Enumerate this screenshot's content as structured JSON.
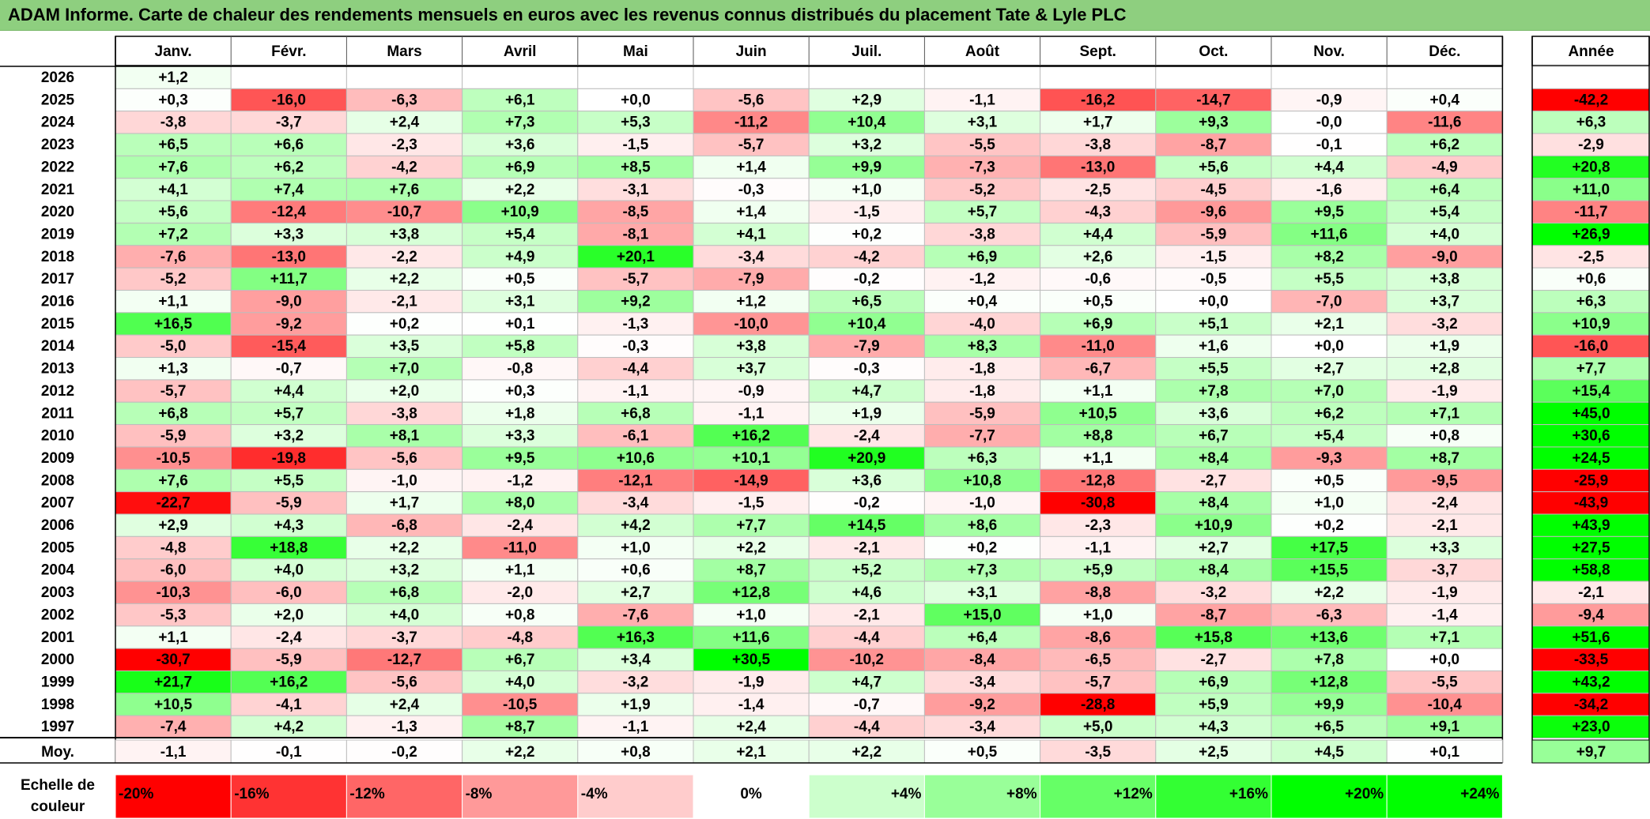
{
  "title": "ADAM Informe. Carte de chaleur des rendements mensuels en euros avec les revenus connus distribués du placement Tate & Lyle PLC",
  "chart_data": {
    "type": "heatmap",
    "months": [
      "Janv.",
      "Févr.",
      "Mars",
      "Avril",
      "Mai",
      "Juin",
      "Juil.",
      "Août",
      "Sept.",
      "Oct.",
      "Nov.",
      "Déc."
    ],
    "year_header": "Année",
    "years": [
      "2026",
      "2025",
      "2024",
      "2023",
      "2022",
      "2021",
      "2020",
      "2019",
      "2018",
      "2017",
      "2016",
      "2015",
      "2014",
      "2013",
      "2012",
      "2011",
      "2010",
      "2009",
      "2008",
      "2007",
      "2006",
      "2005",
      "2004",
      "2003",
      "2002",
      "2001",
      "2000",
      "1999",
      "1998",
      "1997"
    ],
    "values": [
      [
        "+1,2",
        "",
        "",
        "",
        "",
        "",
        "",
        "",
        "",
        "",
        "",
        ""
      ],
      [
        "+0,3",
        "-16,0",
        "-6,3",
        "+6,1",
        "+0,0",
        "-5,6",
        "+2,9",
        "-1,1",
        "-16,2",
        "-14,7",
        "-0,9",
        "+0,4"
      ],
      [
        "-3,8",
        "-3,7",
        "+2,4",
        "+7,3",
        "+5,3",
        "-11,2",
        "+10,4",
        "+3,1",
        "+1,7",
        "+9,3",
        "-0,0",
        "-11,6"
      ],
      [
        "+6,5",
        "+6,6",
        "-2,3",
        "+3,6",
        "-1,5",
        "-5,7",
        "+3,2",
        "-5,5",
        "-3,8",
        "-8,7",
        "-0,1",
        "+6,2"
      ],
      [
        "+7,6",
        "+6,2",
        "-4,2",
        "+6,9",
        "+8,5",
        "+1,4",
        "+9,9",
        "-7,3",
        "-13,0",
        "+5,6",
        "+4,4",
        "-4,9"
      ],
      [
        "+4,1",
        "+7,4",
        "+7,6",
        "+2,2",
        "-3,1",
        "-0,3",
        "+1,0",
        "-5,2",
        "-2,5",
        "-4,5",
        "-1,6",
        "+6,4"
      ],
      [
        "+5,6",
        "-12,4",
        "-10,7",
        "+10,9",
        "-8,5",
        "+1,4",
        "-1,5",
        "+5,7",
        "-4,3",
        "-9,6",
        "+9,5",
        "+5,4"
      ],
      [
        "+7,2",
        "+3,3",
        "+3,8",
        "+5,4",
        "-8,1",
        "+4,1",
        "+0,2",
        "-3,8",
        "+4,4",
        "-5,9",
        "+11,6",
        "+4,0"
      ],
      [
        "-7,6",
        "-13,0",
        "-2,2",
        "+4,9",
        "+20,1",
        "-3,4",
        "-4,2",
        "+6,9",
        "+2,6",
        "-1,5",
        "+8,2",
        "-9,0"
      ],
      [
        "-5,2",
        "+11,7",
        "+2,2",
        "+0,5",
        "-5,7",
        "-7,9",
        "-0,2",
        "-1,2",
        "-0,6",
        "-0,5",
        "+5,5",
        "+3,8"
      ],
      [
        "+1,1",
        "-9,0",
        "-2,1",
        "+3,1",
        "+9,2",
        "+1,2",
        "+6,5",
        "+0,4",
        "+0,5",
        "+0,0",
        "-7,0",
        "+3,7"
      ],
      [
        "+16,5",
        "-9,2",
        "+0,2",
        "+0,1",
        "-1,3",
        "-10,0",
        "+10,4",
        "-4,0",
        "+6,9",
        "+5,1",
        "+2,1",
        "-3,2"
      ],
      [
        "-5,0",
        "-15,4",
        "+3,5",
        "+5,8",
        "-0,3",
        "+3,8",
        "-7,9",
        "+8,3",
        "-11,0",
        "+1,6",
        "+0,0",
        "+1,9"
      ],
      [
        "+1,3",
        "-0,7",
        "+7,0",
        "-0,8",
        "-4,4",
        "+3,7",
        "-0,3",
        "-1,8",
        "-6,7",
        "+5,5",
        "+2,7",
        "+2,8"
      ],
      [
        "-5,7",
        "+4,4",
        "+2,0",
        "+0,3",
        "-1,1",
        "-0,9",
        "+4,7",
        "-1,8",
        "+1,1",
        "+7,8",
        "+7,0",
        "-1,9"
      ],
      [
        "+6,8",
        "+5,7",
        "-3,8",
        "+1,8",
        "+6,8",
        "-1,1",
        "+1,9",
        "-5,9",
        "+10,5",
        "+3,6",
        "+6,2",
        "+7,1"
      ],
      [
        "-5,9",
        "+3,2",
        "+8,1",
        "+3,3",
        "-6,1",
        "+16,2",
        "-2,4",
        "-7,7",
        "+8,8",
        "+6,7",
        "+5,4",
        "+0,8"
      ],
      [
        "-10,5",
        "-19,8",
        "-5,6",
        "+9,5",
        "+10,6",
        "+10,1",
        "+20,9",
        "+6,3",
        "+1,1",
        "+8,4",
        "-9,3",
        "+8,7"
      ],
      [
        "+7,6",
        "+5,5",
        "-1,0",
        "-1,2",
        "-12,1",
        "-14,9",
        "+3,6",
        "+10,8",
        "-12,8",
        "-2,7",
        "+0,5",
        "-9,5"
      ],
      [
        "-22,7",
        "-5,9",
        "+1,7",
        "+8,0",
        "-3,4",
        "-1,5",
        "-0,2",
        "-1,0",
        "-30,8",
        "+8,4",
        "+1,0",
        "-2,4"
      ],
      [
        "+2,9",
        "+4,3",
        "-6,8",
        "-2,4",
        "+4,2",
        "+7,7",
        "+14,5",
        "+8,6",
        "-2,3",
        "+10,9",
        "+0,2",
        "-2,1"
      ],
      [
        "-4,8",
        "+18,8",
        "+2,2",
        "-11,0",
        "+1,0",
        "+2,2",
        "-2,1",
        "+0,2",
        "-1,1",
        "+2,7",
        "+17,5",
        "+3,3"
      ],
      [
        "-6,0",
        "+4,0",
        "+3,2",
        "+1,1",
        "+0,6",
        "+8,7",
        "+5,2",
        "+7,3",
        "+5,9",
        "+8,4",
        "+15,5",
        "-3,7"
      ],
      [
        "-10,3",
        "-6,0",
        "+6,8",
        "-2,0",
        "+2,7",
        "+12,8",
        "+4,6",
        "+3,1",
        "-8,8",
        "-3,2",
        "+2,2",
        "-1,9"
      ],
      [
        "-5,3",
        "+2,0",
        "+4,0",
        "+0,8",
        "-7,6",
        "+1,0",
        "-2,1",
        "+15,0",
        "+1,0",
        "-8,7",
        "-6,3",
        "-1,4"
      ],
      [
        "+1,1",
        "-2,4",
        "-3,7",
        "-4,8",
        "+16,3",
        "+11,6",
        "-4,4",
        "+6,4",
        "-8,6",
        "+15,8",
        "+13,6",
        "+7,1"
      ],
      [
        "-30,7",
        "-5,9",
        "-12,7",
        "+6,7",
        "+3,4",
        "+30,5",
        "-10,2",
        "-8,4",
        "-6,5",
        "-2,7",
        "+7,8",
        "+0,0"
      ],
      [
        "+21,7",
        "+16,2",
        "-5,6",
        "+4,0",
        "-3,2",
        "-1,9",
        "+4,7",
        "-3,4",
        "-5,7",
        "+6,9",
        "+12,8",
        "-5,5"
      ],
      [
        "+10,5",
        "-4,1",
        "+2,4",
        "-10,5",
        "+1,9",
        "-1,4",
        "-0,7",
        "-9,2",
        "-28,8",
        "+5,9",
        "+9,9",
        "-10,4"
      ],
      [
        "-7,4",
        "+4,2",
        "-1,3",
        "+8,7",
        "-1,1",
        "+2,4",
        "-4,4",
        "-3,4",
        "+5,0",
        "+4,3",
        "+6,5",
        "+9,1"
      ]
    ],
    "annual": [
      "",
      "-42,2",
      "+6,3",
      "-2,9",
      "+20,8",
      "+11,0",
      "-11,7",
      "+26,9",
      "-2,5",
      "+0,6",
      "+6,3",
      "+10,9",
      "-16,0",
      "+7,7",
      "+15,4",
      "+45,0",
      "+30,6",
      "+24,5",
      "-25,9",
      "-43,9",
      "+43,9",
      "+27,5",
      "+58,8",
      "-2,1",
      "-9,4",
      "+51,6",
      "-33,5",
      "+43,2",
      "-34,2",
      "+23,0"
    ],
    "average_label": "Moy.",
    "average": [
      "-1,1",
      "-0,1",
      "-0,2",
      "+2,2",
      "+0,8",
      "+2,1",
      "+2,2",
      "+0,5",
      "-3,5",
      "+2,5",
      "+4,5",
      "+0,1"
    ],
    "average_annual": "+9,7",
    "scale_label": [
      "Echelle de",
      "couleur"
    ],
    "scale": [
      "-20%",
      "-16%",
      "-12%",
      "-8%",
      "-4%",
      "0%",
      "+4%",
      "+8%",
      "+12%",
      "+16%",
      "+20%",
      "+24%"
    ],
    "colors": {
      "title_bar": "#8ecf7f",
      "negative_max": "#ff0000",
      "neutral": "#ffffff",
      "positive_max": "#00ff00"
    }
  }
}
